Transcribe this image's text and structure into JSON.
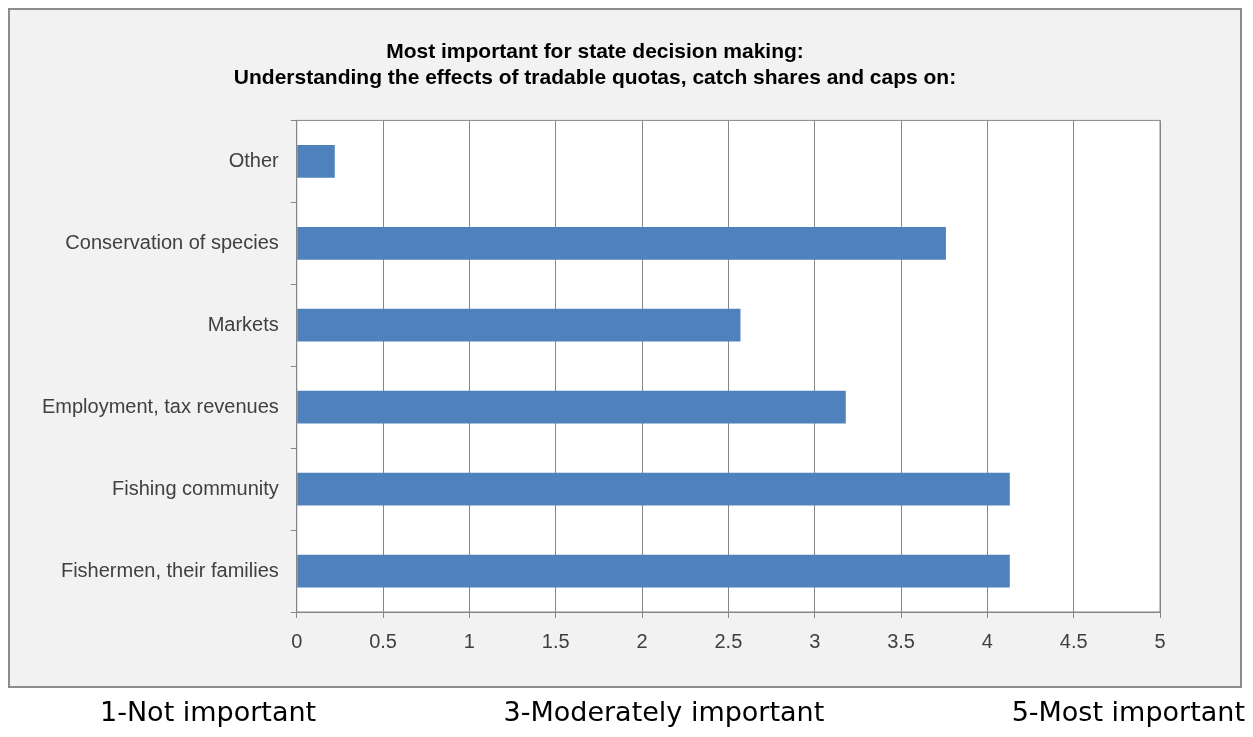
{
  "chart_data": {
    "type": "bar",
    "orientation": "horizontal",
    "title": [
      "Most important for state decision making:",
      "Understanding the effects of tradable quotas, catch shares and caps on:"
    ],
    "categories": [
      "Other",
      "Conservation of species",
      "Markets",
      "Employment, tax revenues",
      "Fishing community",
      "Fishermen, their families"
    ],
    "values": [
      0.22,
      3.76,
      2.57,
      3.18,
      4.13,
      4.13
    ],
    "color": "#4f81bd",
    "xlim": [
      0,
      5
    ],
    "xticks": [
      0,
      0.5,
      1,
      1.5,
      2,
      2.5,
      3,
      3.5,
      4,
      4.5,
      5
    ],
    "grid": "x",
    "legend": false,
    "annotations": [
      "1-Not important",
      "3-Moderately important",
      "5-Most important"
    ]
  }
}
